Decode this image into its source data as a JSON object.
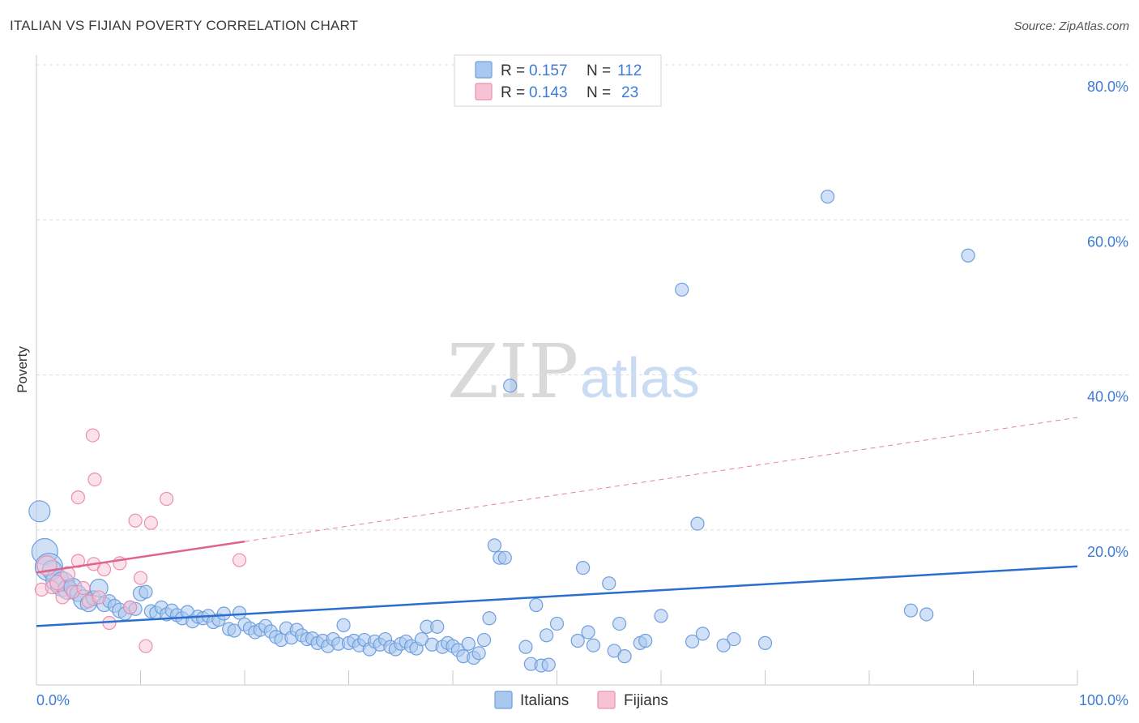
{
  "header": {
    "title": "ITALIAN VS FIJIAN POVERTY CORRELATION CHART",
    "source": "Source: ZipAtlas.com"
  },
  "watermark": {
    "zip": "ZIP",
    "atlas": "atlas"
  },
  "colors": {
    "italian_fill": "#a9c8f0",
    "italian_stroke": "#6f9fdc",
    "italian_line": "#2a6fcf",
    "fijian_fill": "#f7c3d3",
    "fijian_stroke": "#ec8fae",
    "fijian_line": "#e0628e",
    "grid": "#dcdcdc",
    "tick_text": "#3d7bd6"
  },
  "legend": {
    "rows": [
      {
        "r_label": "R =",
        "r_value": "0.157",
        "n_label": "N =",
        "n_value": "112"
      },
      {
        "r_label": "R =",
        "r_value": "0.143",
        "n_label": "N =",
        "n_value": "23"
      }
    ]
  },
  "chart_data": {
    "type": "scatter",
    "title": "ITALIAN VS FIJIAN POVERTY CORRELATION CHART",
    "xlabel": "",
    "ylabel": "Poverty",
    "xlim": [
      0,
      100
    ],
    "ylim": [
      0,
      80
    ],
    "x_tick_labels": [
      "0.0%",
      "100.0%"
    ],
    "y_ticks": [
      20,
      40,
      60,
      80
    ],
    "y_tick_labels": [
      "20.0%",
      "40.0%",
      "60.0%",
      "80.0%"
    ],
    "legend_position": "bottom-center",
    "series": [
      {
        "name": "Italians",
        "R": 0.157,
        "N": 112,
        "trend": {
          "x": [
            0,
            100
          ],
          "y": [
            7.6,
            15.3
          ],
          "style": "solid"
        },
        "points": [
          [
            0.3,
            22.4,
            13
          ],
          [
            0.8,
            17.2,
            16
          ],
          [
            1.2,
            15.2,
            17
          ],
          [
            1.5,
            14.8,
            12
          ],
          [
            2.0,
            13.5,
            14
          ],
          [
            2.5,
            13.0,
            15
          ],
          [
            3.0,
            12.3,
            12
          ],
          [
            3.5,
            12.6,
            11
          ],
          [
            4.0,
            11.8,
            10
          ],
          [
            4.5,
            11.0,
            12
          ],
          [
            5.0,
            10.5,
            10
          ],
          [
            5.5,
            11.2,
            9
          ],
          [
            6.0,
            12.5,
            11
          ],
          [
            6.5,
            10.4,
            9
          ],
          [
            7.0,
            10.8,
            8
          ],
          [
            7.5,
            10.2,
            8
          ],
          [
            8.0,
            9.6,
            9
          ],
          [
            8.5,
            9.2,
            8
          ],
          [
            9.0,
            10.0,
            8
          ],
          [
            9.5,
            9.8,
            8
          ],
          [
            10.0,
            11.8,
            9
          ],
          [
            10.5,
            12.0,
            8
          ],
          [
            11.0,
            9.5,
            8
          ],
          [
            11.5,
            9.3,
            8
          ],
          [
            12.0,
            10.0,
            8
          ],
          [
            12.5,
            9.1,
            8
          ],
          [
            13.0,
            9.6,
            8
          ],
          [
            13.5,
            9.0,
            8
          ],
          [
            14.0,
            8.6,
            8
          ],
          [
            14.5,
            9.4,
            8
          ],
          [
            15.0,
            8.2,
            8
          ],
          [
            15.5,
            8.8,
            8
          ],
          [
            16.0,
            8.6,
            8
          ],
          [
            16.5,
            8.9,
            8
          ],
          [
            17.0,
            8.1,
            8
          ],
          [
            17.5,
            8.4,
            8
          ],
          [
            18.0,
            9.2,
            8
          ],
          [
            18.5,
            7.2,
            8
          ],
          [
            19.0,
            7.0,
            8
          ],
          [
            19.5,
            9.3,
            8
          ],
          [
            20.0,
            7.8,
            8
          ],
          [
            20.5,
            7.3,
            8
          ],
          [
            21.0,
            6.8,
            8
          ],
          [
            21.5,
            7.1,
            8
          ],
          [
            22.0,
            7.6,
            8
          ],
          [
            22.5,
            6.9,
            8
          ],
          [
            23.0,
            6.2,
            8
          ],
          [
            23.5,
            5.8,
            8
          ],
          [
            24.0,
            7.3,
            8
          ],
          [
            24.5,
            6.1,
            8
          ],
          [
            25.0,
            7.1,
            8
          ],
          [
            25.5,
            6.4,
            8
          ],
          [
            26.0,
            5.9,
            8
          ],
          [
            26.5,
            6.0,
            8
          ],
          [
            27.0,
            5.4,
            8
          ],
          [
            27.5,
            5.7,
            8
          ],
          [
            28.0,
            5.0,
            8
          ],
          [
            28.5,
            5.9,
            8
          ],
          [
            29.0,
            5.3,
            8
          ],
          [
            29.5,
            7.7,
            8
          ],
          [
            30.0,
            5.4,
            8
          ],
          [
            30.5,
            5.7,
            8
          ],
          [
            31.0,
            5.1,
            8
          ],
          [
            31.5,
            5.8,
            8
          ],
          [
            32.0,
            4.6,
            8
          ],
          [
            32.5,
            5.6,
            8
          ],
          [
            33.0,
            5.2,
            8
          ],
          [
            33.5,
            5.9,
            8
          ],
          [
            34.0,
            4.9,
            8
          ],
          [
            34.5,
            4.6,
            8
          ],
          [
            35.0,
            5.3,
            8
          ],
          [
            35.5,
            5.6,
            8
          ],
          [
            36.0,
            5.0,
            8
          ],
          [
            36.5,
            4.7,
            8
          ],
          [
            37.0,
            5.9,
            8
          ],
          [
            37.5,
            7.5,
            8
          ],
          [
            38.0,
            5.2,
            8
          ],
          [
            38.5,
            7.5,
            8
          ],
          [
            39.0,
            4.9,
            8
          ],
          [
            39.5,
            5.4,
            8
          ],
          [
            40.0,
            5.0,
            8
          ],
          [
            40.5,
            4.5,
            8
          ],
          [
            41.0,
            3.7,
            8
          ],
          [
            41.5,
            5.3,
            8
          ],
          [
            42.0,
            3.5,
            8
          ],
          [
            42.5,
            4.1,
            8
          ],
          [
            43.0,
            5.8,
            8
          ],
          [
            43.5,
            8.6,
            8
          ],
          [
            44.0,
            18.0,
            8
          ],
          [
            44.5,
            16.4,
            8
          ],
          [
            45.0,
            16.4,
            8
          ],
          [
            47.0,
            4.9,
            8
          ],
          [
            47.5,
            2.7,
            8
          ],
          [
            48.0,
            10.3,
            8
          ],
          [
            48.5,
            2.5,
            8
          ],
          [
            49.0,
            6.4,
            8
          ],
          [
            49.2,
            2.6,
            8
          ],
          [
            45.5,
            38.6,
            8
          ],
          [
            50.0,
            7.9,
            8
          ],
          [
            52.0,
            5.7,
            8
          ],
          [
            52.5,
            15.1,
            8
          ],
          [
            53.0,
            6.8,
            8
          ],
          [
            53.5,
            5.1,
            8
          ],
          [
            55.0,
            13.1,
            8
          ],
          [
            55.5,
            4.4,
            8
          ],
          [
            56.0,
            7.9,
            8
          ],
          [
            56.5,
            3.7,
            8
          ],
          [
            58.0,
            5.4,
            8
          ],
          [
            58.5,
            5.7,
            8
          ],
          [
            60.0,
            8.9,
            8
          ],
          [
            63.0,
            5.6,
            8
          ],
          [
            63.5,
            20.8,
            8
          ],
          [
            64.0,
            6.6,
            8
          ],
          [
            66.0,
            5.1,
            8
          ],
          [
            67.0,
            5.9,
            8
          ],
          [
            70.0,
            5.4,
            8
          ],
          [
            62.0,
            51.0,
            8
          ],
          [
            76.0,
            63.0,
            8
          ],
          [
            89.5,
            55.4,
            8
          ],
          [
            84.0,
            9.6,
            8
          ],
          [
            85.5,
            9.1,
            8
          ]
        ]
      },
      {
        "name": "Fijians",
        "R": 0.143,
        "N": 23,
        "trend": {
          "x": [
            0,
            100
          ],
          "y": [
            14.5,
            34.5
          ],
          "solid_until_x": 20,
          "style": "solid-then-dashed"
        },
        "points": [
          [
            0.5,
            12.3,
            8
          ],
          [
            1.0,
            15.4,
            12
          ],
          [
            1.5,
            12.6,
            8
          ],
          [
            2.0,
            13.2,
            9
          ],
          [
            2.5,
            11.3,
            8
          ],
          [
            3.0,
            14.3,
            9
          ],
          [
            3.5,
            12.0,
            8
          ],
          [
            4.0,
            16.0,
            8
          ],
          [
            4.5,
            12.5,
            8
          ],
          [
            5.0,
            10.8,
            8
          ],
          [
            5.5,
            15.6,
            8
          ],
          [
            6.0,
            11.3,
            8
          ],
          [
            5.4,
            32.2,
            8
          ],
          [
            5.6,
            26.5,
            8
          ],
          [
            4.0,
            24.2,
            8
          ],
          [
            6.5,
            14.9,
            8
          ],
          [
            7.0,
            8.0,
            8
          ],
          [
            9.5,
            21.2,
            8
          ],
          [
            8.0,
            15.7,
            8
          ],
          [
            10.0,
            13.8,
            8
          ],
          [
            11.0,
            20.9,
            8
          ],
          [
            12.5,
            24.0,
            8
          ],
          [
            19.5,
            16.1,
            8
          ],
          [
            9.0,
            10.0,
            8
          ],
          [
            10.5,
            5.0,
            8
          ]
        ]
      }
    ]
  },
  "bottom_legend": {
    "items": [
      {
        "label": "Italians"
      },
      {
        "label": "Fijians"
      }
    ]
  }
}
